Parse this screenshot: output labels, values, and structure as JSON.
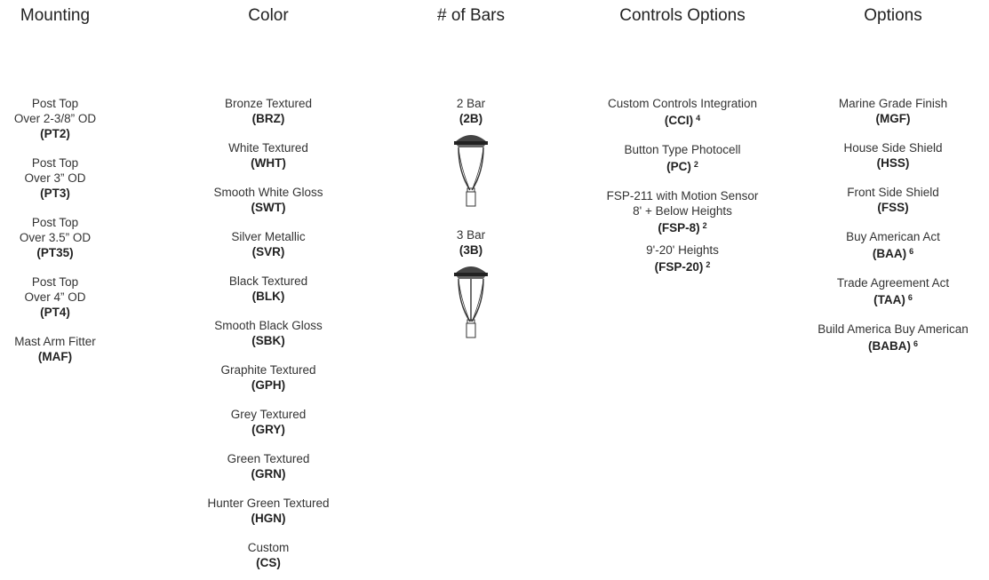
{
  "columns": [
    {
      "title": "Mounting",
      "items": [
        {
          "lines": [
            "Post Top",
            "Over 2-3/8” OD"
          ],
          "code": "(PT2)"
        },
        {
          "lines": [
            "Post Top",
            "Over 3” OD"
          ],
          "code": "(PT3)"
        },
        {
          "lines": [
            "Post Top",
            "Over 3.5” OD"
          ],
          "code": "(PT35)"
        },
        {
          "lines": [
            "Post Top",
            "Over 4” OD"
          ],
          "code": "(PT4)"
        },
        {
          "lines": [
            "Mast Arm Fitter"
          ],
          "code": "(MAF)"
        }
      ]
    },
    {
      "title": "Color",
      "items": [
        {
          "lines": [
            "Bronze Textured"
          ],
          "code": "(BRZ)"
        },
        {
          "lines": [
            "White Textured"
          ],
          "code": "(WHT)"
        },
        {
          "lines": [
            "Smooth White Gloss"
          ],
          "code": "(SWT)"
        },
        {
          "lines": [
            "Silver Metallic"
          ],
          "code": "(SVR)"
        },
        {
          "lines": [
            "Black Textured"
          ],
          "code": "(BLK)"
        },
        {
          "lines": [
            "Smooth Black Gloss"
          ],
          "code": "(SBK)"
        },
        {
          "lines": [
            "Graphite Textured"
          ],
          "code": "(GPH)"
        },
        {
          "lines": [
            "Grey Textured"
          ],
          "code": "(GRY)"
        },
        {
          "lines": [
            "Green Textured"
          ],
          "code": "(GRN)"
        },
        {
          "lines": [
            "Hunter Green Textured"
          ],
          "code": "(HGN)"
        },
        {
          "lines": [
            "Custom"
          ],
          "code": "(CS)"
        }
      ]
    },
    {
      "title": "# of Bars",
      "items": [
        {
          "lines": [
            "2 Bar"
          ],
          "code": "(2B)"
        },
        {
          "lines": [
            "3 Bar"
          ],
          "code": "(3B)"
        }
      ]
    },
    {
      "title": "Controls Options",
      "items": [
        {
          "lines": [
            "Custom Controls Integration"
          ],
          "code": "(CCI)",
          "note": "4"
        },
        {
          "lines": [
            "Button Type Photocell"
          ],
          "code": "(PC)",
          "note": "2"
        },
        {
          "lines": [
            "FSP-211 with Motion Sensor",
            "8' + Below Heights"
          ],
          "code": "(FSP-8)",
          "note": "2"
        },
        {
          "lines": [
            "9'-20' Heights"
          ],
          "code": "(FSP-20)",
          "note": "2"
        }
      ]
    },
    {
      "title": "Options",
      "items": [
        {
          "lines": [
            "Marine Grade Finish"
          ],
          "code": "(MGF)"
        },
        {
          "lines": [
            "House Side Shield"
          ],
          "code": "(HSS)"
        },
        {
          "lines": [
            "Front Side Shield"
          ],
          "code": "(FSS)"
        },
        {
          "lines": [
            "Buy American Act"
          ],
          "code": "(BAA)",
          "note": "6"
        },
        {
          "lines": [
            "Trade Agreement Act"
          ],
          "code": "(TAA)",
          "note": "6"
        },
        {
          "lines": [
            "Build America Buy American"
          ],
          "code": "(BABA)",
          "note": "6"
        }
      ]
    }
  ]
}
